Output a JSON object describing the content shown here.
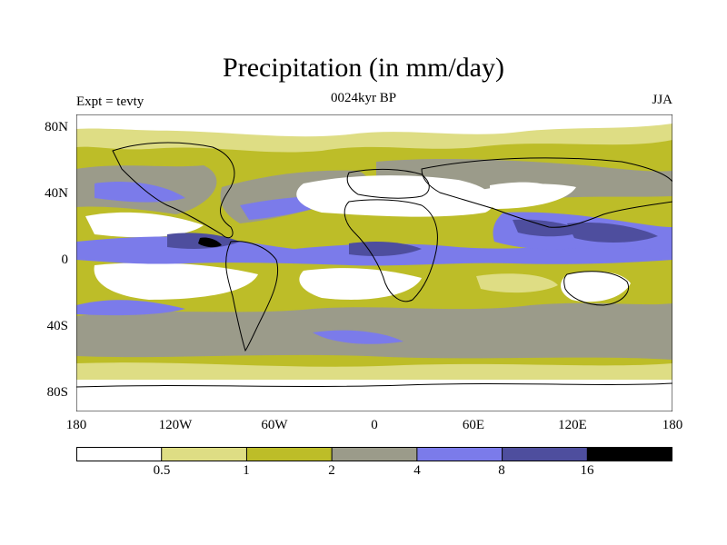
{
  "figure": {
    "title": "Precipitation (in mm/day)",
    "subtitle": "0024kyr BP",
    "left_label": "Expt = tevty",
    "right_label": "JJA"
  },
  "axes": {
    "lat_ticks": [
      "80N",
      "40N",
      "0",
      "40S",
      "80S"
    ],
    "lon_ticks": [
      "180",
      "120W",
      "60W",
      "0",
      "60E",
      "120E",
      "180"
    ]
  },
  "legend": {
    "labels": [
      "0.5",
      "1",
      "2",
      "4",
      "8",
      "16"
    ],
    "colors": [
      "#ffffff",
      "#dedd84",
      "#bdbd28",
      "#9b9b8a",
      "#7b7bea",
      "#4e4e9e",
      "#000000"
    ]
  },
  "colors": {
    "land_outline": "#000000",
    "very_dry": "#ffffff",
    "dry": "#dedd84",
    "moderate": "#bdbd28",
    "wet": "#9b9b8a",
    "very_wet": "#7b7bea",
    "extreme": "#4e4e9e",
    "max": "#000000"
  }
}
